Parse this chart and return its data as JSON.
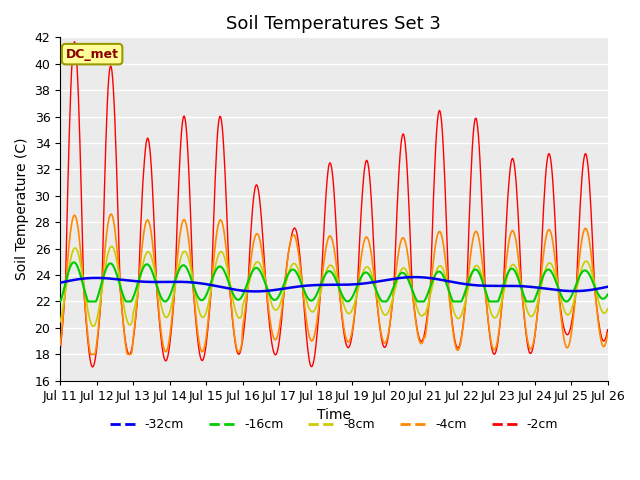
{
  "title": "Soil Temperatures Set 3",
  "xlabel": "Time",
  "ylabel": "Soil Temperature (C)",
  "ylim": [
    16,
    42
  ],
  "yticks": [
    16,
    18,
    20,
    22,
    24,
    26,
    28,
    30,
    32,
    34,
    36,
    38,
    40,
    42
  ],
  "x_labels": [
    "Jul 11",
    "Jul 12",
    "Jul 13",
    "Jul 14",
    "Jul 15",
    "Jul 16",
    "Jul 17",
    "Jul 18",
    "Jul 19",
    "Jul 20",
    "Jul 21",
    "Jul 22",
    "Jul 23",
    "Jul 24",
    "Jul 25",
    "Jul 26"
  ],
  "legend_labels": [
    "-32cm",
    "-16cm",
    "-8cm",
    "-4cm",
    "-2cm"
  ],
  "line_colors": [
    "#0000ee",
    "#00cc00",
    "#cccc00",
    "#ff8800",
    "#ff0000"
  ],
  "plot_bg_color": "#ebebeb",
  "annotation_text": "DC_met",
  "title_fontsize": 13,
  "axis_label_fontsize": 10,
  "tick_fontsize": 9
}
